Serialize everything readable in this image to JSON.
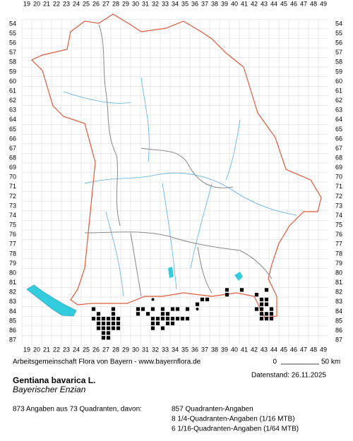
{
  "map": {
    "columns": [
      19,
      20,
      21,
      22,
      23,
      24,
      25,
      26,
      27,
      28,
      29,
      30,
      31,
      32,
      33,
      34,
      35,
      36,
      37,
      38,
      39,
      40,
      41,
      42,
      43,
      44,
      45,
      46,
      47,
      48,
      49
    ],
    "rows": [
      54,
      55,
      56,
      57,
      58,
      59,
      60,
      61,
      62,
      63,
      64,
      65,
      66,
      67,
      68,
      69,
      70,
      71,
      72,
      73,
      74,
      75,
      76,
      77,
      78,
      79,
      80,
      81,
      82,
      83,
      84,
      85,
      86,
      87
    ],
    "quadrants": [
      [
        25.75,
        83.75
      ],
      [
        27.75,
        83.75
      ],
      [
        26.25,
        84.25
      ],
      [
        27.75,
        84.25
      ],
      [
        25.75,
        84.75
      ],
      [
        26.25,
        84.75
      ],
      [
        26.75,
        84.75
      ],
      [
        27.25,
        84.75
      ],
      [
        27.75,
        84.75
      ],
      [
        28.25,
        84.75
      ],
      [
        26.25,
        85.25
      ],
      [
        26.75,
        85.25
      ],
      [
        27.25,
        85.25
      ],
      [
        27.75,
        85.25
      ],
      [
        28.25,
        85.25
      ],
      [
        26.25,
        85.75
      ],
      [
        26.75,
        85.75
      ],
      [
        27.25,
        85.75
      ],
      [
        27.75,
        85.75
      ],
      [
        28.25,
        85.75
      ],
      [
        26.75,
        86.25
      ],
      [
        27.25,
        86.25
      ],
      [
        26.75,
        86.75
      ],
      [
        27.25,
        86.75
      ],
      [
        30.25,
        83.75
      ],
      [
        30.75,
        83.75
      ],
      [
        31.75,
        83.75
      ],
      [
        32.75,
        83.75
      ],
      [
        33.75,
        83.75
      ],
      [
        34.25,
        83.75
      ],
      [
        35.25,
        83.75
      ],
      [
        30.25,
        84.25
      ],
      [
        31.25,
        84.25
      ],
      [
        32.75,
        84.25
      ],
      [
        33.25,
        84.25
      ],
      [
        31.75,
        84.75
      ],
      [
        32.25,
        84.75
      ],
      [
        32.75,
        84.75
      ],
      [
        33.25,
        84.75
      ],
      [
        33.75,
        84.75
      ],
      [
        34.25,
        84.75
      ],
      [
        34.75,
        84.75
      ],
      [
        35.25,
        84.75
      ],
      [
        31.75,
        85.25
      ],
      [
        32.25,
        85.25
      ],
      [
        33.25,
        85.25
      ],
      [
        33.75,
        85.25
      ],
      [
        31.75,
        85.75
      ],
      [
        32.75,
        85.75
      ],
      [
        36.75,
        82.75
      ],
      [
        37.25,
        82.75
      ],
      [
        36.25,
        83.25
      ],
      [
        39.25,
        81.75
      ],
      [
        40.75,
        81.75
      ],
      [
        39.25,
        82.25
      ],
      [
        43.25,
        81.75
      ],
      [
        42.25,
        82.25
      ],
      [
        42.75,
        82.75
      ],
      [
        43.25,
        82.75
      ],
      [
        42.75,
        83.25
      ],
      [
        43.25,
        83.25
      ],
      [
        42.25,
        83.75
      ],
      [
        42.75,
        83.75
      ],
      [
        43.75,
        83.75
      ],
      [
        42.75,
        84.25
      ],
      [
        43.25,
        84.25
      ],
      [
        43.75,
        84.25
      ],
      [
        42.75,
        84.75
      ],
      [
        43.25,
        84.75
      ],
      [
        43.75,
        84.75
      ]
    ],
    "points": [
      [
        31.75,
        82.75
      ],
      [
        36.25,
        83.75
      ]
    ]
  },
  "credit": "Arbeitsgemeinschaft Flora von Bayern - www.bayernflora.de",
  "scale": {
    "start": "0",
    "end": "50 km"
  },
  "date": "Datenstand: 26.11.2025",
  "species": {
    "name": "Gentiana bavarica L.",
    "common": "Bayerischer Enzian"
  },
  "stats": {
    "summary": "873 Angaben aus 73 Quadranten, davon:",
    "lines": [
      "857 Quadranten-Angaben",
      "8 1/4-Quadranten-Angaben (1/16 MTB)",
      "6 1/16-Quadranten-Angaben (1/64 MTB)"
    ]
  }
}
